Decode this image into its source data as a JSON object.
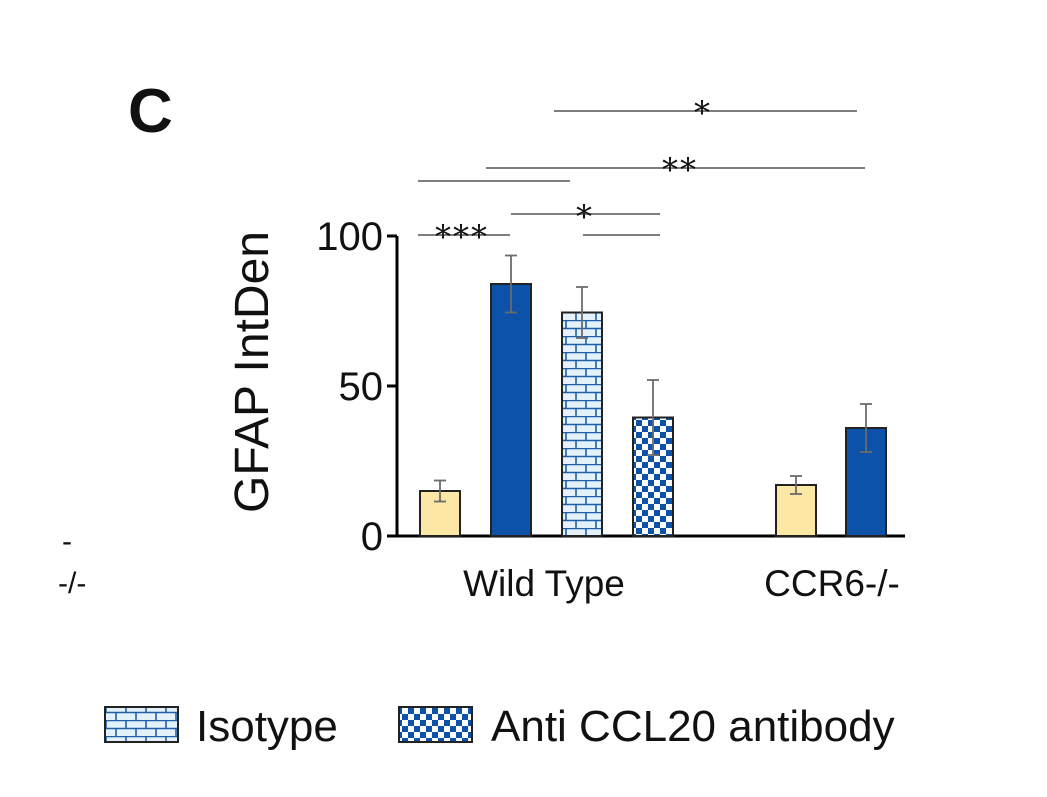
{
  "panel_label": "C",
  "edge_fragments": [
    "-",
    "-/-"
  ],
  "colors": {
    "yellow_fill": "#fde7a5",
    "blue_fill": "#0b52a8",
    "light_blue_fill": "#e3f1fb",
    "pattern_line": "#1f5fa8",
    "bar_stroke": "#222222",
    "axis": "#000000",
    "error_bar": "#6b6b6b"
  },
  "chart_data": {
    "type": "bar",
    "ylabel": "GFAP IntDen",
    "ylim": [
      0,
      100
    ],
    "yticks": [
      0,
      50,
      100
    ],
    "groups": [
      {
        "label": "Wild Type",
        "bars": [
          {
            "style": "yellow",
            "value": 15,
            "error": 3.5
          },
          {
            "style": "blue",
            "value": 84,
            "error": 9.5
          },
          {
            "style": "brick",
            "value": 74.5,
            "error": 8.5
          },
          {
            "style": "checker",
            "value": 39.5,
            "error": 12.5
          }
        ]
      },
      {
        "label": "CCR6-/-",
        "bars": [
          {
            "style": "yellow",
            "value": 17,
            "error": 3
          },
          {
            "style": "blue",
            "value": 36,
            "error": 8
          }
        ]
      }
    ],
    "significance": [
      {
        "label": "***",
        "from_bar": 0,
        "to_bar": 1
      },
      {
        "label": "",
        "from_bar": 0,
        "to_bar": 2
      },
      {
        "label": "*",
        "from_bar": 1,
        "to_bar": 3
      },
      {
        "label": "",
        "from_bar": 2,
        "to_bar": 3
      },
      {
        "label": "**",
        "from_bar": 1,
        "to_bar": 5
      },
      {
        "label": "*",
        "from_bar": 2,
        "to_bar": 5
      }
    ],
    "legend": [
      {
        "style": "brick",
        "label": "Isotype"
      },
      {
        "style": "checker",
        "label": "Anti CCL20 antibody"
      }
    ]
  }
}
